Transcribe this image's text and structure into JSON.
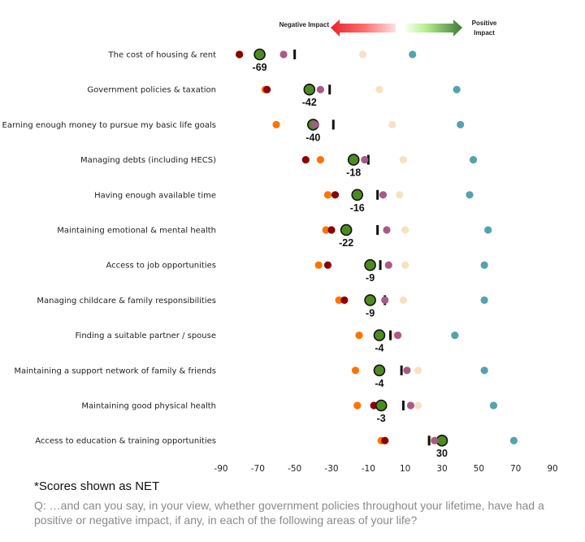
{
  "chart_data": {
    "type": "scatter",
    "subtype": "dot-plot",
    "title": "",
    "xlabel": "",
    "ylabel": "",
    "xlim": [
      -90,
      90
    ],
    "x_ticks": [
      -90,
      -70,
      -50,
      -30,
      -10,
      10,
      30,
      50,
      70,
      90
    ],
    "grid": false,
    "legend": {
      "negative_label": "Negative Impact",
      "positive_label_line1": "Positive",
      "positive_label_line2": "Impact",
      "placement": "top"
    },
    "colors": {
      "net": "#4e8a22",
      "orange": "#ff7300",
      "darkred": "#8b0000",
      "purple": "#a85a85",
      "black_marker": "#111111",
      "beige": "#f5e2c4",
      "teal": "#55a3a8"
    },
    "categories": [
      "The cost of housing & rent",
      "Government policies & taxation",
      "Earning enough money to pursue my basic life goals",
      "Managing debts (including HECS)",
      "Having enough available time",
      "Maintaining emotional & mental health",
      "Access to job opportunities",
      "Managing childcare & family responsibilities",
      "Finding a suitable partner / spouse",
      "Maintaining a support network of family & friends",
      "Maintaining good physical health",
      "Access to education & training opportunities"
    ],
    "series": [
      {
        "name": "orange",
        "marker": "dot",
        "values": [
          -80,
          -66,
          -60,
          -36,
          -32,
          -33,
          -37,
          -26,
          -15,
          -17,
          -16,
          -3
        ]
      },
      {
        "name": "darkred",
        "marker": "dot",
        "values": [
          -80,
          -65,
          null,
          -44,
          -28,
          -30,
          -32,
          -23,
          -4,
          -4,
          -7,
          -1
        ]
      },
      {
        "name": "purple",
        "marker": "dot",
        "values": [
          -56,
          -36,
          -39,
          -12,
          -2,
          0,
          1,
          -1,
          6,
          11,
          13,
          26
        ]
      },
      {
        "name": "black_marker",
        "marker": "bar",
        "values": [
          -50,
          -31,
          -29,
          -10,
          -5,
          -5,
          -3.5,
          -1,
          2,
          8,
          9,
          23
        ]
      },
      {
        "name": "beige",
        "marker": "dot",
        "values": [
          -13,
          -4,
          3,
          9,
          7,
          10,
          10,
          9,
          3,
          17,
          17,
          24
        ]
      },
      {
        "name": "teal",
        "marker": "dot",
        "values": [
          14,
          38,
          40,
          47,
          45,
          55,
          53,
          53,
          37,
          53,
          58,
          69
        ]
      },
      {
        "name": "NET",
        "marker": "big-dot",
        "values": [
          -69,
          -42,
          -40,
          -18,
          -16,
          -22,
          -9,
          -9,
          -4,
          -4,
          -3,
          30
        ]
      }
    ],
    "net_labels": [
      "-69",
      "-42",
      "-40",
      "-18",
      "-16",
      "-22",
      "-9",
      "-9",
      "-4",
      "-4",
      "-3",
      "30"
    ]
  },
  "footer": {
    "note": "*Scores shown as NET",
    "question": "Q: …and can you say, in your view, whether government policies throughout your lifetime, have had a positive or negative impact, if any, in each of the following areas of your life?"
  }
}
